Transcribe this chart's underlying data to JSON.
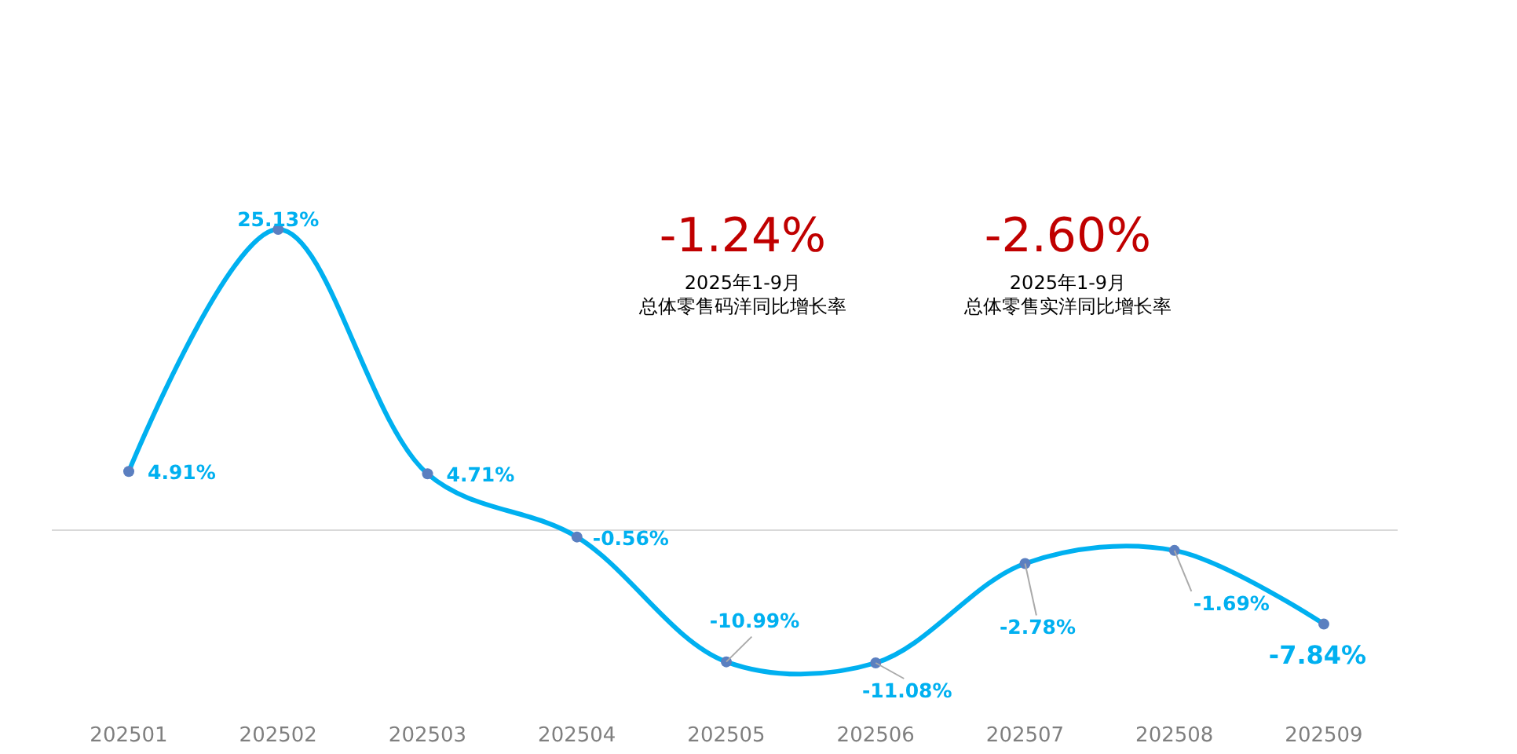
{
  "chart_data": {
    "type": "line",
    "categories": [
      "202501",
      "202502",
      "202503",
      "202504",
      "202505",
      "202506",
      "202507",
      "202508",
      "202509"
    ],
    "series": [
      {
        "color": "#00b0f0",
        "values": [
          4.91,
          25.13,
          4.71,
          -0.56,
          -10.99,
          -11.08,
          -2.78,
          -1.69,
          -7.84
        ],
        "value_labels": [
          "4.91%",
          "25.13%",
          "4.71%",
          "-0.56%",
          "-10.99%",
          "-11.08%",
          "-2.78%",
          "-1.69%",
          "-7.84%"
        ]
      }
    ],
    "relative": false,
    "marker": "circle",
    "annotations": [
      "-1.24%",
      "2025年1-9月",
      "总体零售码洋同比增长率",
      "-2.60%",
      "2025年1-9月",
      "总体零售实洋同比增长率"
    ]
  }
}
